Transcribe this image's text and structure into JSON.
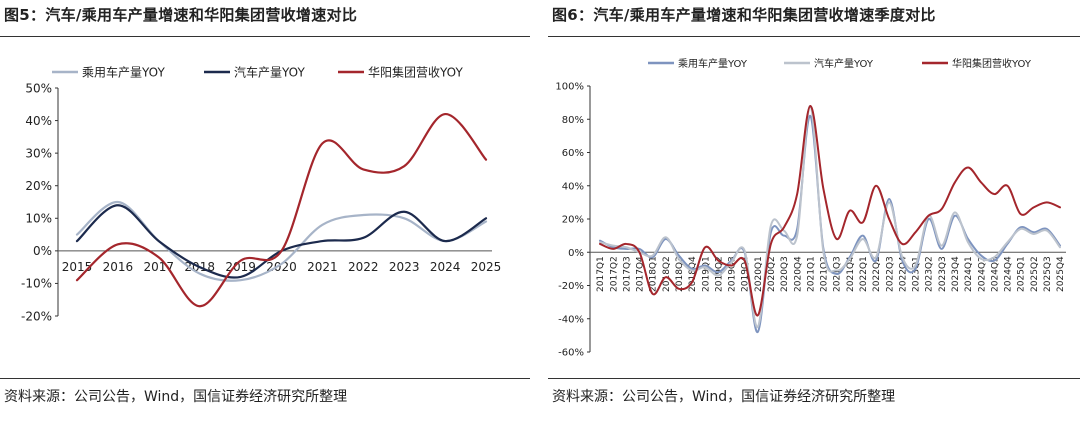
{
  "figures": [
    {
      "title": "图5：汽车/乘用车产量增速和华阳集团营收增速对比",
      "source": "资料来源：公司公告，Wind，国信证券经济研究所整理"
    },
    {
      "title": "图6：汽车/乘用车产量增速和华阳集团营收增速季度对比",
      "source": "资料来源：公司公告，Wind，国信证券经济研究所整理"
    }
  ],
  "chart_data": [
    {
      "type": "line",
      "title": "图5：汽车/乘用车产量增速和华阳集团营收增速对比",
      "x": [
        "2015",
        "2016",
        "2017",
        "2018",
        "2019",
        "2020",
        "2021",
        "2022",
        "2023",
        "2024",
        "2025"
      ],
      "y_ticks": [
        "50%",
        "40%",
        "30%",
        "20%",
        "10%",
        "0%",
        "-10%",
        "-20%"
      ],
      "ylim": [
        -20,
        50
      ],
      "legend_position": "top",
      "series": [
        {
          "name": "乘用车产量YOY",
          "color": "#a7b4c8",
          "values": [
            5,
            15,
            3,
            -7,
            -9,
            -4,
            8,
            11,
            10,
            3,
            9
          ]
        },
        {
          "name": "汽车产量YOY",
          "color": "#1c2a4d",
          "values": [
            3,
            14,
            3,
            -5,
            -8,
            0,
            3,
            4,
            12,
            3,
            10
          ]
        },
        {
          "name": "华阳集团营收YOY",
          "color": "#a4262c",
          "values": [
            -9,
            2,
            -2,
            -17,
            -3,
            0,
            33,
            25,
            26,
            42,
            28
          ]
        }
      ]
    },
    {
      "type": "line",
      "title": "图6：汽车/乘用车产量增速和华阳集团营收增速季度对比",
      "x": [
        "2017Q1",
        "2017Q2",
        "2017Q3",
        "2017Q4",
        "2018Q1",
        "2018Q2",
        "2018Q3",
        "2018Q4",
        "2019Q1",
        "2019Q2",
        "2019Q3",
        "2019Q4",
        "2020Q1",
        "2020Q2",
        "2020Q3",
        "2020Q4",
        "2021Q1",
        "2021Q2",
        "2021Q3",
        "2021Q4",
        "2022Q1",
        "2022Q2",
        "2022Q3",
        "2022Q4",
        "2023Q1",
        "2023Q2",
        "2023Q3",
        "2023Q4",
        "2024Q1",
        "2024Q2",
        "2024Q3",
        "2024Q4",
        "2025Q1",
        "2025Q2",
        "2025Q3",
        "2025Q4"
      ],
      "y_ticks": [
        "100%",
        "80%",
        "60%",
        "40%",
        "20%",
        "0%",
        "-20%",
        "-40%",
        "-60%"
      ],
      "ylim": [
        -60,
        100
      ],
      "legend_position": "top",
      "series": [
        {
          "name": "乘用车产量YOY",
          "color": "#7e94bf",
          "values": [
            7,
            3,
            2,
            2,
            -3,
            8,
            -2,
            -10,
            -8,
            -12,
            -5,
            0,
            -48,
            12,
            10,
            14,
            82,
            2,
            -13,
            -3,
            10,
            -5,
            32,
            -5,
            -10,
            20,
            2,
            22,
            8,
            -2,
            -5,
            5,
            15,
            12,
            14,
            4
          ]
        },
        {
          "name": "汽车产量YOY",
          "color": "#bcc3cd",
          "values": [
            6,
            4,
            3,
            0,
            -2,
            9,
            -4,
            -11,
            -9,
            -14,
            -6,
            1,
            -45,
            16,
            13,
            10,
            88,
            0,
            -11,
            -4,
            8,
            -3,
            30,
            -3,
            -8,
            22,
            4,
            24,
            6,
            -4,
            -3,
            6,
            14,
            11,
            13,
            3
          ]
        },
        {
          "name": "华阳集团营收YOY",
          "color": "#a4262c",
          "values": [
            5,
            2,
            5,
            0,
            -25,
            -15,
            -22,
            -18,
            3,
            -5,
            -8,
            -5,
            -38,
            5,
            15,
            35,
            88,
            38,
            8,
            25,
            18,
            40,
            20,
            5,
            12,
            22,
            26,
            42,
            51,
            42,
            35,
            40,
            23,
            27,
            30,
            27
          ]
        }
      ]
    }
  ]
}
